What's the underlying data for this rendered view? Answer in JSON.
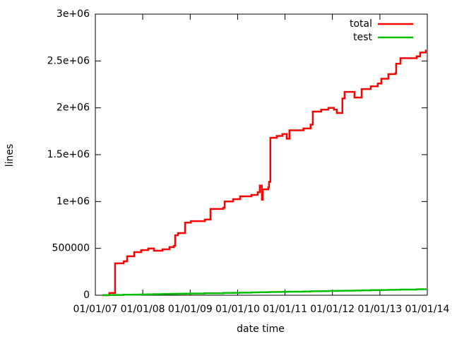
{
  "chart_data": {
    "type": "line",
    "xlabel": "date time",
    "ylabel": "lines",
    "x": [
      "2007-02-24",
      "2007-04-19",
      "2007-06-02",
      "2007-08-07",
      "2007-09-03",
      "2007-10-27",
      "2007-12-20",
      "2008-02-12",
      "2008-03-27",
      "2008-06-01",
      "2008-07-25",
      "2008-08-27",
      "2008-09-07",
      "2008-09-28",
      "2008-11-22",
      "2009-01-05",
      "2009-04-23",
      "2009-06-06",
      "2009-09-12",
      "2009-09-23",
      "2009-11-27",
      "2010-01-20",
      "2010-04-17",
      "2010-06-05",
      "2010-06-21",
      "2010-07-07",
      "2010-07-13",
      "2010-08-25",
      "2010-08-31",
      "2010-09-10",
      "2010-10-29",
      "2010-12-12",
      "2011-01-14",
      "2011-02-04",
      "2011-05-23",
      "2011-07-17",
      "2011-08-03",
      "2011-10-07",
      "2011-12-01",
      "2012-01-13",
      "2012-02-04",
      "2012-03-18",
      "2012-04-04",
      "2012-06-19",
      "2012-08-13",
      "2012-10-22",
      "2012-12-15",
      "2013-01-12",
      "2013-03-07",
      "2013-05-01",
      "2013-05-06",
      "2013-06-08",
      "2013-10-11",
      "2013-11-07",
      "2013-12-20"
    ],
    "series": [
      {
        "name": "total",
        "color": "#ff0000",
        "values": [
          0,
          23000,
          340000,
          362000,
          415000,
          460000,
          482000,
          498000,
          475000,
          490000,
          513000,
          528000,
          640000,
          663000,
          775000,
          791000,
          807000,
          920000,
          935000,
          1000000,
          1025000,
          1055000,
          1070000,
          1100000,
          1170000,
          1020000,
          1130000,
          1150000,
          1210000,
          1680000,
          1700000,
          1720000,
          1670000,
          1760000,
          1780000,
          1820000,
          1960000,
          1980000,
          2000000,
          1980000,
          1945000,
          2100000,
          2170000,
          2110000,
          2200000,
          2230000,
          2260000,
          2310000,
          2360000,
          2370000,
          2470000,
          2530000,
          2550000,
          2590000,
          2620000
        ]
      },
      {
        "name": "test",
        "color": "#00c000",
        "values": [
          1000,
          2000,
          3000,
          5000,
          6000,
          7000,
          8000,
          10000,
          11000,
          13000,
          14000,
          15000,
          15000,
          16000,
          17000,
          18000,
          20000,
          21000,
          24000,
          24000,
          26000,
          27000,
          30000,
          31000,
          32000,
          32000,
          32000,
          33000,
          33000,
          34000,
          35000,
          36000,
          37000,
          38000,
          40000,
          42000,
          42000,
          44000,
          45000,
          46000,
          47000,
          48000,
          48000,
          50000,
          52000,
          54000,
          55000,
          56000,
          57000,
          59000,
          59000,
          60000,
          63000,
          64000,
          72000
        ]
      }
    ],
    "xlim": [
      "2007-01-01",
      "2014-01-01"
    ],
    "xticks": [
      {
        "value": "2007-01-01",
        "label": "01/01/07"
      },
      {
        "value": "2008-01-01",
        "label": "01/01/08"
      },
      {
        "value": "2009-01-01",
        "label": "01/01/09"
      },
      {
        "value": "2010-01-01",
        "label": "01/01/10"
      },
      {
        "value": "2011-01-01",
        "label": "01/01/11"
      },
      {
        "value": "2012-01-01",
        "label": "01/01/12"
      },
      {
        "value": "2013-01-01",
        "label": "01/01/13"
      },
      {
        "value": "2014-01-01",
        "label": "01/01/14"
      }
    ],
    "ylim": [
      0,
      3000000
    ],
    "yticks": [
      0,
      500000,
      {
        "value": 1000000,
        "label": "1e+06"
      },
      {
        "value": 1500000,
        "label": "1.5e+06"
      },
      {
        "value": 2000000,
        "label": "2e+06"
      },
      {
        "value": 2500000,
        "label": "2.5e+06"
      },
      {
        "value": 3000000,
        "label": "3e+06"
      }
    ],
    "legend": "top right"
  }
}
